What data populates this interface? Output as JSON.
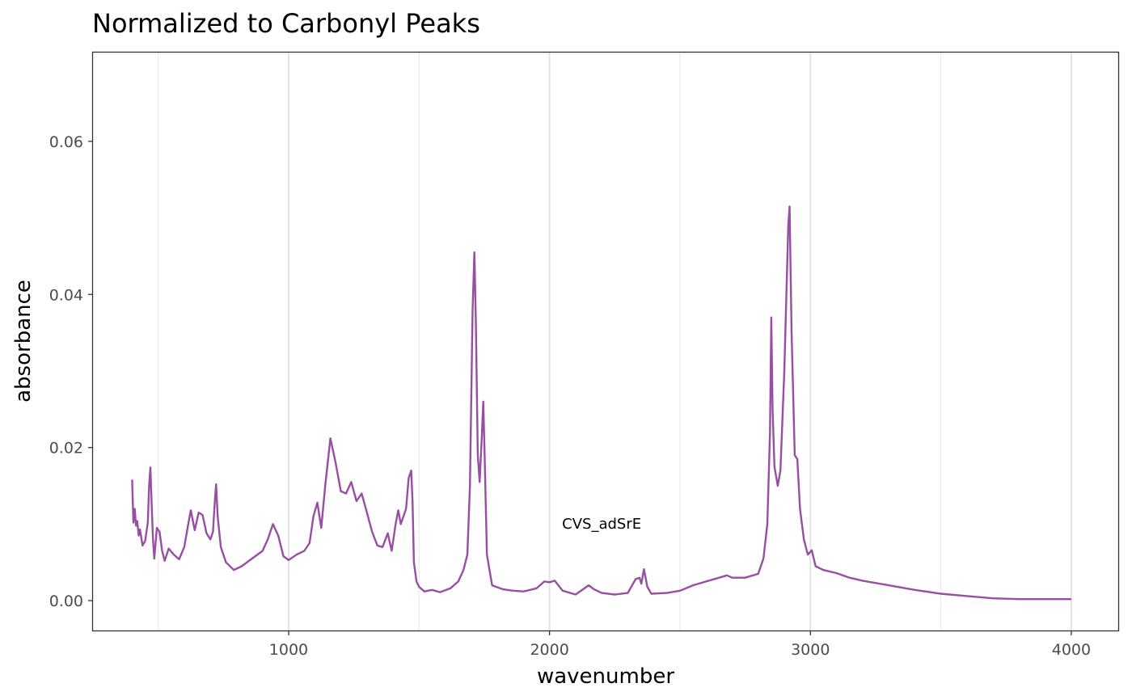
{
  "chart_data": {
    "type": "line",
    "title": "Normalized to Carbonyl Peaks",
    "xlabel": "wavenumber",
    "ylabel": "absorbance",
    "xlim": [
      250,
      4180
    ],
    "ylim": [
      -0.0039,
      0.0716
    ],
    "x_ticks": [
      1000,
      2000,
      3000,
      4000
    ],
    "x_tick_labels": [
      "1000",
      "2000",
      "3000",
      "4000"
    ],
    "y_ticks": [
      0.0,
      0.02,
      0.04,
      0.06
    ],
    "y_tick_labels": [
      "0.00",
      "0.02",
      "0.04",
      "0.06"
    ],
    "grid": true,
    "legend": "none",
    "line_color": "#984ea3",
    "annotation": {
      "text": "CVS_adSrE",
      "x": 2200,
      "y": 0.0094
    },
    "series": [
      {
        "values": [
          [
            400,
            0.0158
          ],
          [
            405,
            0.0102
          ],
          [
            410,
            0.012
          ],
          [
            415,
            0.0098
          ],
          [
            420,
            0.0104
          ],
          [
            425,
            0.0085
          ],
          [
            430,
            0.0093
          ],
          [
            440,
            0.0072
          ],
          [
            450,
            0.0078
          ],
          [
            460,
            0.0102
          ],
          [
            465,
            0.015
          ],
          [
            470,
            0.0174
          ],
          [
            475,
            0.0125
          ],
          [
            480,
            0.008
          ],
          [
            485,
            0.0055
          ],
          [
            495,
            0.0095
          ],
          [
            505,
            0.009
          ],
          [
            515,
            0.0065
          ],
          [
            525,
            0.0052
          ],
          [
            540,
            0.0068
          ],
          [
            560,
            0.006
          ],
          [
            580,
            0.0054
          ],
          [
            600,
            0.007
          ],
          [
            615,
            0.01
          ],
          [
            625,
            0.0118
          ],
          [
            640,
            0.0092
          ],
          [
            655,
            0.0115
          ],
          [
            670,
            0.0112
          ],
          [
            685,
            0.0088
          ],
          [
            700,
            0.008
          ],
          [
            710,
            0.009
          ],
          [
            718,
            0.0135
          ],
          [
            722,
            0.0152
          ],
          [
            728,
            0.011
          ],
          [
            740,
            0.007
          ],
          [
            760,
            0.005
          ],
          [
            790,
            0.004
          ],
          [
            820,
            0.0045
          ],
          [
            860,
            0.0055
          ],
          [
            900,
            0.0065
          ],
          [
            920,
            0.008
          ],
          [
            940,
            0.01
          ],
          [
            960,
            0.0085
          ],
          [
            980,
            0.0058
          ],
          [
            1000,
            0.0053
          ],
          [
            1030,
            0.006
          ],
          [
            1060,
            0.0065
          ],
          [
            1080,
            0.0075
          ],
          [
            1095,
            0.011
          ],
          [
            1110,
            0.0128
          ],
          [
            1125,
            0.0095
          ],
          [
            1140,
            0.015
          ],
          [
            1160,
            0.0212
          ],
          [
            1180,
            0.018
          ],
          [
            1200,
            0.0143
          ],
          [
            1220,
            0.014
          ],
          [
            1240,
            0.0155
          ],
          [
            1260,
            0.013
          ],
          [
            1280,
            0.014
          ],
          [
            1300,
            0.0115
          ],
          [
            1320,
            0.009
          ],
          [
            1340,
            0.0072
          ],
          [
            1360,
            0.007
          ],
          [
            1380,
            0.0088
          ],
          [
            1395,
            0.0065
          ],
          [
            1410,
            0.01
          ],
          [
            1420,
            0.0118
          ],
          [
            1430,
            0.01
          ],
          [
            1450,
            0.012
          ],
          [
            1460,
            0.016
          ],
          [
            1470,
            0.017
          ],
          [
            1475,
            0.013
          ],
          [
            1480,
            0.005
          ],
          [
            1490,
            0.0025
          ],
          [
            1500,
            0.0018
          ],
          [
            1520,
            0.0012
          ],
          [
            1550,
            0.0014
          ],
          [
            1580,
            0.0011
          ],
          [
            1620,
            0.0016
          ],
          [
            1650,
            0.0025
          ],
          [
            1670,
            0.004
          ],
          [
            1685,
            0.006
          ],
          [
            1695,
            0.015
          ],
          [
            1705,
            0.038
          ],
          [
            1712,
            0.0455
          ],
          [
            1718,
            0.036
          ],
          [
            1725,
            0.019
          ],
          [
            1732,
            0.0155
          ],
          [
            1740,
            0.021
          ],
          [
            1746,
            0.026
          ],
          [
            1752,
            0.018
          ],
          [
            1760,
            0.006
          ],
          [
            1780,
            0.002
          ],
          [
            1820,
            0.0015
          ],
          [
            1860,
            0.0013
          ],
          [
            1900,
            0.0012
          ],
          [
            1950,
            0.0016
          ],
          [
            1980,
            0.0025
          ],
          [
            2000,
            0.0024
          ],
          [
            2020,
            0.0026
          ],
          [
            2050,
            0.0013
          ],
          [
            2100,
            0.0008
          ],
          [
            2150,
            0.002
          ],
          [
            2170,
            0.0015
          ],
          [
            2200,
            0.001
          ],
          [
            2250,
            0.0008
          ],
          [
            2300,
            0.001
          ],
          [
            2330,
            0.0028
          ],
          [
            2345,
            0.003
          ],
          [
            2352,
            0.0022
          ],
          [
            2362,
            0.0041
          ],
          [
            2375,
            0.0018
          ],
          [
            2390,
            0.0009
          ],
          [
            2450,
            0.001
          ],
          [
            2500,
            0.0013
          ],
          [
            2550,
            0.002
          ],
          [
            2600,
            0.0025
          ],
          [
            2650,
            0.003
          ],
          [
            2680,
            0.0033
          ],
          [
            2700,
            0.003
          ],
          [
            2750,
            0.003
          ],
          [
            2800,
            0.0035
          ],
          [
            2820,
            0.0055
          ],
          [
            2835,
            0.01
          ],
          [
            2845,
            0.022
          ],
          [
            2850,
            0.037
          ],
          [
            2855,
            0.025
          ],
          [
            2862,
            0.0175
          ],
          [
            2875,
            0.015
          ],
          [
            2885,
            0.017
          ],
          [
            2900,
            0.03
          ],
          [
            2915,
            0.049
          ],
          [
            2920,
            0.0515
          ],
          [
            2928,
            0.035
          ],
          [
            2940,
            0.019
          ],
          [
            2950,
            0.0185
          ],
          [
            2960,
            0.012
          ],
          [
            2975,
            0.008
          ],
          [
            2990,
            0.006
          ],
          [
            3005,
            0.0066
          ],
          [
            3020,
            0.0045
          ],
          [
            3050,
            0.004
          ],
          [
            3100,
            0.0036
          ],
          [
            3150,
            0.003
          ],
          [
            3200,
            0.0026
          ],
          [
            3300,
            0.002
          ],
          [
            3400,
            0.0014
          ],
          [
            3500,
            0.0009
          ],
          [
            3600,
            0.0006
          ],
          [
            3700,
            0.0003
          ],
          [
            3800,
            0.0002
          ],
          [
            3900,
            0.0002
          ],
          [
            4000,
            0.0002
          ]
        ]
      }
    ]
  }
}
